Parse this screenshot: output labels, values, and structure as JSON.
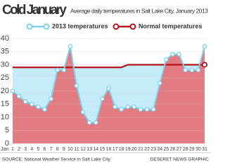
{
  "chart_data": {
    "type": "line",
    "title": "Cold January",
    "subtitle": "Average daily temperatures in Salt Lake City, January 2013",
    "xlabel": "Jan.",
    "x": [
      1,
      2,
      3,
      4,
      5,
      6,
      7,
      8,
      9,
      10,
      11,
      12,
      13,
      14,
      15,
      16,
      17,
      18,
      19,
      20,
      21,
      22,
      23,
      24,
      25,
      26,
      27,
      28,
      29,
      30,
      31
    ],
    "series": [
      {
        "name": "2013 temperatures",
        "color": "#7fd0ec",
        "values": [
          20,
          18,
          16,
          15,
          14,
          13,
          17,
          28,
          28,
          37,
          22,
          12,
          8,
          8,
          17,
          21,
          14,
          13,
          14,
          14,
          13,
          13,
          13,
          23,
          32,
          34,
          34,
          28,
          28,
          28,
          37
        ]
      },
      {
        "name": "Normal temperatures",
        "color": "#b3141c",
        "values": [
          29,
          29,
          29,
          29,
          29,
          29,
          29,
          29,
          29,
          29,
          29,
          29,
          29,
          29,
          29,
          29,
          29,
          29,
          30,
          30,
          30,
          30,
          30,
          30,
          30,
          30,
          30,
          30,
          30,
          30,
          30
        ]
      }
    ],
    "xlim": [
      1,
      31
    ],
    "ylim": [
      0,
      40
    ],
    "yticks": [
      0,
      5,
      10,
      15,
      20,
      25,
      30,
      35,
      40
    ],
    "grid": true,
    "source": "SOURCE: National Weather Service in Salt Lake City",
    "credit": "DESERET NEWS GRAPHIC"
  }
}
